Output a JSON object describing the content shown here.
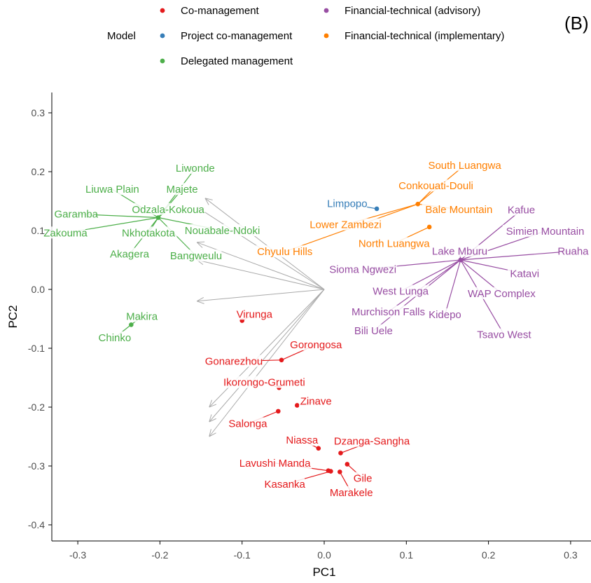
{
  "panel_label": "(B)",
  "legend": {
    "title": "Model",
    "entries": [
      {
        "label": "Co-management",
        "color": "#e41a1c"
      },
      {
        "label": "Project co-management",
        "color": "#377eb8"
      },
      {
        "label": "Delegated management",
        "color": "#4daf4a"
      },
      {
        "label": "Financial-technical (advisory)",
        "color": "#984ea3"
      },
      {
        "label": "Financial-technical (implementary)",
        "color": "#ff7f00"
      }
    ]
  },
  "chart_data": {
    "type": "scatter",
    "title": "",
    "xlabel": "PC1",
    "ylabel": "PC2",
    "xlim": [
      -0.33,
      0.33
    ],
    "ylim": [
      -0.43,
      0.33
    ],
    "xticks": [
      -0.3,
      -0.2,
      -0.1,
      0.0,
      0.1,
      0.2,
      0.3
    ],
    "xtick_labels": [
      "-0.3",
      "-0.2",
      "-0.1",
      "0.0",
      "0.1",
      "0.2",
      "0.3"
    ],
    "yticks": [
      -0.4,
      -0.3,
      -0.2,
      -0.1,
      0.0,
      0.1,
      0.2,
      0.3
    ],
    "ytick_labels": [
      "-0.4",
      "-0.3",
      "-0.2",
      "-0.1",
      "0.0",
      "0.1",
      "0.2",
      "0.3"
    ],
    "grid": false,
    "legend_position": "top",
    "loading_arrows": {
      "origin": [
        0.0,
        0.0
      ],
      "tips": [
        [
          -0.145,
          0.155
        ],
        [
          -0.155,
          0.14
        ],
        [
          -0.155,
          0.08
        ],
        [
          -0.155,
          0.05
        ],
        [
          -0.155,
          -0.02
        ],
        [
          -0.14,
          -0.2
        ],
        [
          -0.14,
          -0.225
        ],
        [
          -0.14,
          -0.25
        ]
      ],
      "color": "#aaaaaa"
    },
    "series": [
      {
        "name": "Co-management",
        "color": "#e41a1c",
        "points": [
          {
            "label": "Virunga",
            "x": -0.1,
            "y": -0.053,
            "lx": -0.085,
            "ly": -0.042
          },
          {
            "label": "Gorongosa",
            "x": -0.052,
            "y": -0.12,
            "lx": -0.01,
            "ly": -0.094
          },
          {
            "label": "Gonarezhou",
            "x": -0.052,
            "y": -0.12,
            "lx": -0.11,
            "ly": -0.122
          },
          {
            "label": "Ikorongo-Grumeti",
            "x": -0.055,
            "y": -0.167,
            "lx": -0.073,
            "ly": -0.158
          },
          {
            "label": "Zinave",
            "x": -0.033,
            "y": -0.197,
            "lx": -0.01,
            "ly": -0.19
          },
          {
            "label": "Salonga",
            "x": -0.056,
            "y": -0.207,
            "lx": -0.093,
            "ly": -0.228
          },
          {
            "label": "Niassa",
            "x": -0.007,
            "y": -0.27,
            "lx": -0.027,
            "ly": -0.256
          },
          {
            "label": "Dzanga-Sangha",
            "x": 0.02,
            "y": -0.278,
            "lx": 0.058,
            "ly": -0.258
          },
          {
            "label": "Lavushi Manda",
            "x": 0.005,
            "y": -0.308,
            "lx": -0.06,
            "ly": -0.295
          },
          {
            "label": "Gile",
            "x": 0.028,
            "y": -0.297,
            "lx": 0.047,
            "ly": -0.321
          },
          {
            "label": "Marakele",
            "x": 0.019,
            "y": -0.31,
            "lx": 0.033,
            "ly": -0.345
          },
          {
            "label": "Kasanka",
            "x": 0.008,
            "y": -0.309,
            "lx": -0.048,
            "ly": -0.331
          }
        ]
      },
      {
        "name": "Project co-management",
        "color": "#377eb8",
        "points": [
          {
            "label": "Limpopo",
            "x": 0.064,
            "y": 0.137,
            "lx": 0.028,
            "ly": 0.146
          }
        ]
      },
      {
        "name": "Delegated management",
        "color": "#4daf4a",
        "points": [
          {
            "label": "Liwonde",
            "x": -0.202,
            "y": 0.122,
            "lx": -0.157,
            "ly": 0.206
          },
          {
            "label": "Liuwa Plain",
            "x": -0.202,
            "y": 0.122,
            "lx": -0.258,
            "ly": 0.17
          },
          {
            "label": "Majete",
            "x": -0.202,
            "y": 0.122,
            "lx": -0.173,
            "ly": 0.17
          },
          {
            "label": "Garamba",
            "x": -0.202,
            "y": 0.122,
            "lx": -0.302,
            "ly": 0.128
          },
          {
            "label": "Odzala-Kokoua",
            "x": -0.202,
            "y": 0.122,
            "lx": -0.19,
            "ly": 0.136
          },
          {
            "label": "Zakouma",
            "x": -0.202,
            "y": 0.122,
            "lx": -0.315,
            "ly": 0.096
          },
          {
            "label": "Nkhotakota",
            "x": -0.202,
            "y": 0.122,
            "lx": -0.214,
            "ly": 0.096
          },
          {
            "label": "Nouabale-Ndoki",
            "x": -0.202,
            "y": 0.122,
            "lx": -0.124,
            "ly": 0.1
          },
          {
            "label": "Akagera",
            "x": -0.202,
            "y": 0.122,
            "lx": -0.237,
            "ly": 0.06
          },
          {
            "label": "Bangweulu",
            "x": -0.202,
            "y": 0.122,
            "lx": -0.156,
            "ly": 0.057
          },
          {
            "label": "Makira",
            "x": -0.235,
            "y": -0.06,
            "lx": -0.222,
            "ly": -0.046
          },
          {
            "label": "Chinko",
            "x": -0.235,
            "y": -0.06,
            "lx": -0.255,
            "ly": -0.082
          }
        ]
      },
      {
        "name": "Financial-technical (advisory)",
        "color": "#984ea3",
        "points": [
          {
            "label": "Kafue",
            "x": 0.166,
            "y": 0.05,
            "lx": 0.24,
            "ly": 0.135
          },
          {
            "label": "Simien Mountain",
            "x": 0.166,
            "y": 0.05,
            "lx": 0.269,
            "ly": 0.099
          },
          {
            "label": "Lake Mburu",
            "x": 0.166,
            "y": 0.05,
            "lx": 0.165,
            "ly": 0.065
          },
          {
            "label": "Ruaha",
            "x": 0.166,
            "y": 0.05,
            "lx": 0.303,
            "ly": 0.065
          },
          {
            "label": "Sioma Ngwezi",
            "x": 0.166,
            "y": 0.05,
            "lx": 0.047,
            "ly": 0.034
          },
          {
            "label": "Katavi",
            "x": 0.166,
            "y": 0.05,
            "lx": 0.244,
            "ly": 0.027
          },
          {
            "label": "West Lunga",
            "x": 0.166,
            "y": 0.05,
            "lx": 0.093,
            "ly": -0.003
          },
          {
            "label": "WAP Complex",
            "x": 0.166,
            "y": 0.05,
            "lx": 0.216,
            "ly": -0.007
          },
          {
            "label": "Murchison Falls",
            "x": 0.166,
            "y": 0.05,
            "lx": 0.078,
            "ly": -0.038
          },
          {
            "label": "Kidepo",
            "x": 0.166,
            "y": 0.05,
            "lx": 0.147,
            "ly": -0.043
          },
          {
            "label": "Bili Uele",
            "x": 0.166,
            "y": 0.05,
            "lx": 0.06,
            "ly": -0.07
          },
          {
            "label": "Tsavo West",
            "x": 0.166,
            "y": 0.05,
            "lx": 0.219,
            "ly": -0.077
          }
        ]
      },
      {
        "name": "Financial-technical (implementary)",
        "color": "#ff7f00",
        "points": [
          {
            "label": "South Luangwa",
            "x": 0.114,
            "y": 0.145,
            "lx": 0.171,
            "ly": 0.211
          },
          {
            "label": "Conkouati-Douli",
            "x": 0.114,
            "y": 0.145,
            "lx": 0.136,
            "ly": 0.176
          },
          {
            "label": "Bale Mountain",
            "x": 0.114,
            "y": 0.145,
            "lx": 0.164,
            "ly": 0.136
          },
          {
            "label": "Lower Zambezi",
            "x": 0.114,
            "y": 0.145,
            "lx": 0.026,
            "ly": 0.11
          },
          {
            "label": "North Luangwa",
            "x": 0.128,
            "y": 0.106,
            "lx": 0.085,
            "ly": 0.078
          },
          {
            "label": "Chyulu Hills",
            "x": 0.114,
            "y": 0.145,
            "lx": -0.048,
            "ly": 0.064
          }
        ]
      }
    ]
  }
}
